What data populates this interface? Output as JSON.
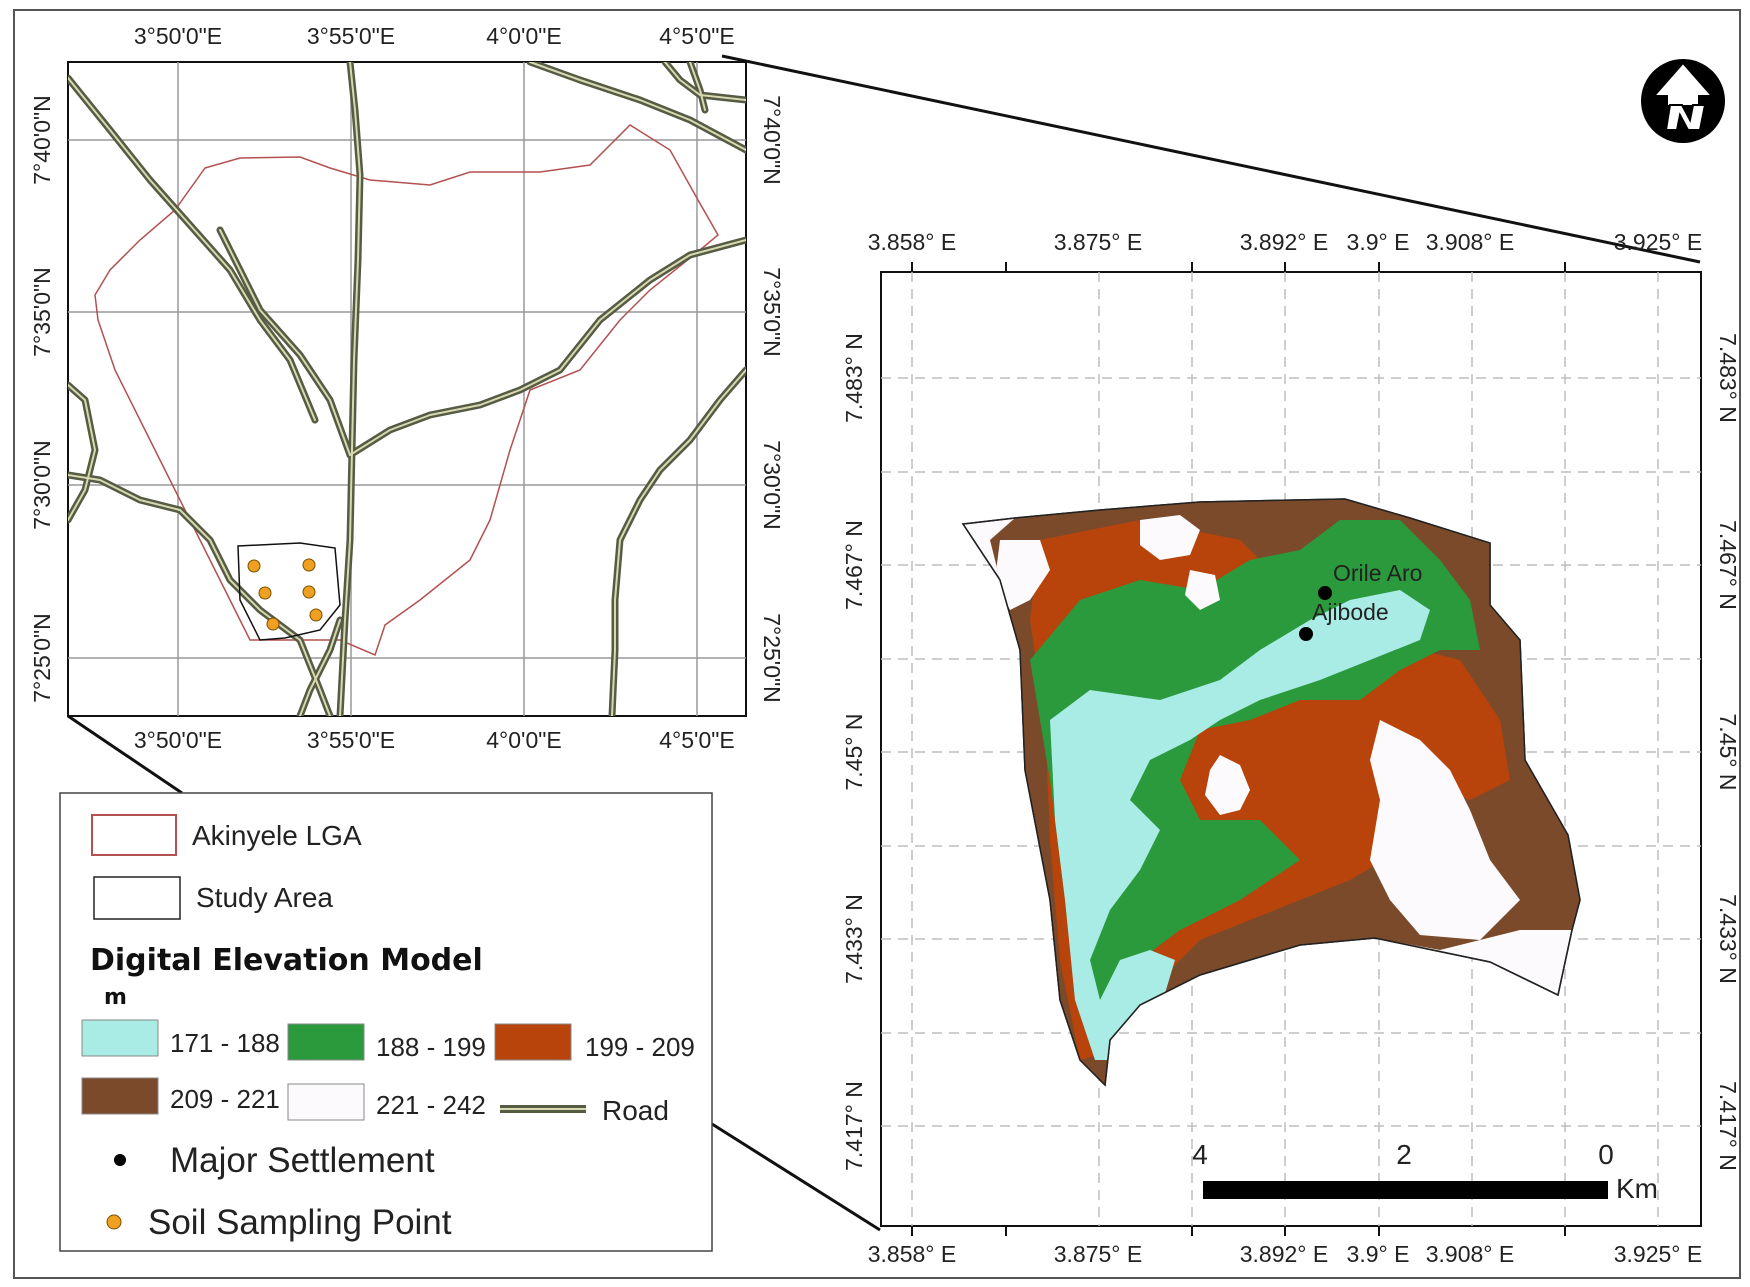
{
  "inset_map": {
    "top_ticks": [
      "3°50'0\"E",
      "3°55'0\"E",
      "4°0'0\"E",
      "4°5'0\"E"
    ],
    "bottom_ticks": [
      "3°50'0\"E",
      "3°55'0\"E",
      "4°0'0\"E",
      "4°5'0\"E"
    ],
    "left_ticks": [
      "7°40'0\"N",
      "7°35'0\"N",
      "7°30'0\"N",
      "7°25'0\"N"
    ],
    "right_ticks": [
      "7°40'0\"N",
      "7°35'0\"N",
      "7°30'0\"N",
      "7°25'0\"N"
    ],
    "sampling_point_count": 6
  },
  "main_map": {
    "top_ticks": [
      "3.858° E",
      "3.875° E",
      "3.892° E",
      "3.9° E",
      "3.908° E",
      "3.925° E"
    ],
    "bottom_ticks": [
      "3.858° E",
      "3.875° E",
      "3.892° E",
      "3.9° E",
      "3.908° E",
      "3.925° E"
    ],
    "left_ticks": [
      "7.483° N",
      "7.467° N",
      "7.45° N",
      "7.433° N",
      "7.417° N"
    ],
    "right_ticks": [
      "7.483° N",
      "7.467° N",
      "7.45° N",
      "7.433° N",
      "7.417° N"
    ],
    "settlements": [
      "Orile Aro",
      "Ajibode"
    ],
    "scale_bar": {
      "labels": [
        "4",
        "2",
        "0"
      ],
      "unit": "Km"
    }
  },
  "legend": {
    "lga_label": "Akinyele LGA",
    "study_area_label": "Study Area",
    "dem_title": "Digital Elevation Model",
    "dem_unit": "m",
    "classes": [
      {
        "label": "171 - 188",
        "color": "#a9ece6"
      },
      {
        "label": "188 - 199",
        "color": "#2a9a3c"
      },
      {
        "label": "199 - 209",
        "color": "#b8440c"
      },
      {
        "label": "209 - 221",
        "color": "#7b4a2a"
      },
      {
        "label": "221 - 242",
        "color": "#fcfafd"
      }
    ],
    "road_label": "Road",
    "settlement_label": "Major Settlement",
    "sampling_label": "Soil Sampling Point"
  },
  "colors": {
    "road": "#5a6048",
    "lga_boundary": "#b45050",
    "settlement": "#000000",
    "sampling_point": "#f0a020"
  }
}
